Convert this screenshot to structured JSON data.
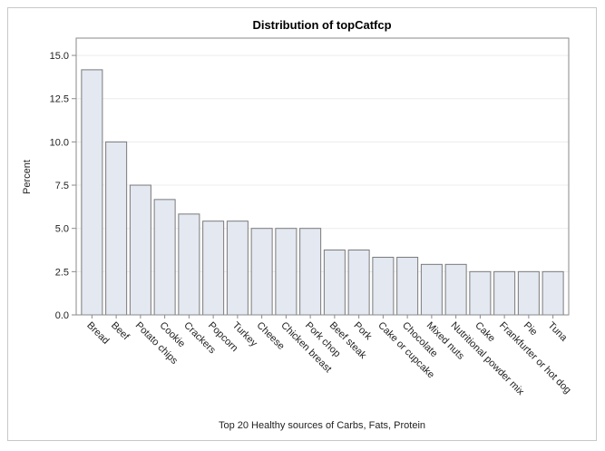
{
  "chart_data": {
    "type": "bar",
    "title": "Distribution of topCatfcp",
    "xlabel": "Top 20 Healthy sources of Carbs, Fats, Protein",
    "ylabel": "Percent",
    "ylim": [
      0,
      16
    ],
    "yticks": [
      "0.0",
      "2.5",
      "5.0",
      "7.5",
      "10.0",
      "12.5",
      "15.0"
    ],
    "grid": true,
    "categories": [
      "Bread",
      "Beef",
      "Potato chips",
      "Cookie",
      "Crackers",
      "Popcorn",
      "Turkey",
      "Cheese",
      "Chicken breast",
      "Pork chop",
      "Beef steak",
      "Pork",
      "Cake or cupcake",
      "Chocolate",
      "Mixed nuts",
      "Nutritional powder mix",
      "Cake",
      "Frankfurter or hot dog",
      "Pie",
      "Tuna"
    ],
    "values": [
      14.17,
      10.0,
      7.5,
      6.67,
      5.83,
      5.42,
      5.42,
      5.0,
      5.0,
      5.0,
      3.75,
      3.75,
      3.33,
      3.33,
      2.92,
      2.92,
      2.5,
      2.5,
      2.5,
      2.5
    ],
    "colors": {
      "bar_fill": "#e3e8f1",
      "bar_stroke": "#7a7a7a"
    }
  }
}
